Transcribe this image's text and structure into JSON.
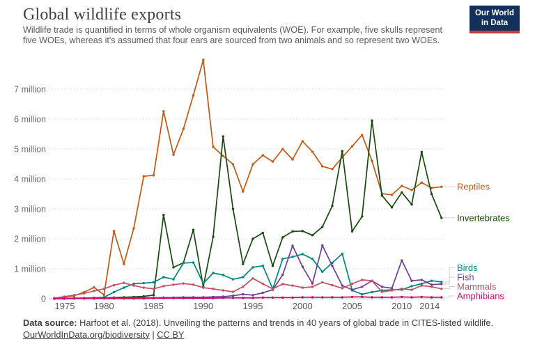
{
  "header": {
    "title": "Global wildlife exports",
    "subtitle": "Wildlife trade is quantified in terms of whole organism equivalents (WOE). For example, five skulls represent five WOEs, whereas it's assumed that four ears are sourced from two animals and so represent two WOEs.",
    "logo": {
      "line1": "Our World",
      "line2": "in Data",
      "bg_color": "#12305a",
      "accent_color": "#cc3b33"
    }
  },
  "footer": {
    "source_label": "Data source:",
    "source_text": " Harfoot et al. (2018). Unveiling the patterns and trends in 40 years of global trade in CITES-listed wildlife.",
    "link1": "OurWorldInData.org/biodiversity",
    "separator": " | ",
    "link2": "CC BY"
  },
  "chart_data": {
    "type": "line",
    "title": "Global wildlife exports",
    "xlabel": "",
    "ylabel": "whole organism equivalents (WOE)",
    "grid": "horizontal-dotted",
    "legend_position": "right",
    "ylim_million": [
      0,
      8
    ],
    "x": [
      1975,
      1976,
      1977,
      1978,
      1979,
      1980,
      1981,
      1982,
      1983,
      1984,
      1985,
      1986,
      1987,
      1988,
      1989,
      1990,
      1991,
      1992,
      1993,
      1994,
      1995,
      1996,
      1997,
      1998,
      1999,
      2000,
      2001,
      2002,
      2003,
      2004,
      2005,
      2006,
      2007,
      2008,
      2009,
      2010,
      2011,
      2012,
      2013,
      2014
    ],
    "x_ticks": [
      "1975",
      "1980",
      "1985",
      "1990",
      "1995",
      "2000",
      "2005",
      "2010",
      "2014"
    ],
    "y_ticks": [
      {
        "v": 0,
        "label": "0"
      },
      {
        "v": 1,
        "label": "1 million"
      },
      {
        "v": 2,
        "label": "2 million"
      },
      {
        "v": 3,
        "label": "3 million"
      },
      {
        "v": 4,
        "label": "4 million"
      },
      {
        "v": 5,
        "label": "5 million"
      },
      {
        "v": 6,
        "label": "6 million"
      },
      {
        "v": 7,
        "label": "7 million"
      }
    ],
    "values_unit": "million WOE",
    "series": [
      {
        "name": "Reptiles",
        "color": "#be5915",
        "values_million": [
          0.02,
          0.05,
          0.1,
          0.22,
          0.38,
          0.13,
          2.26,
          1.16,
          2.35,
          4.09,
          4.12,
          6.26,
          4.81,
          5.67,
          6.79,
          7.98,
          5.07,
          4.77,
          4.49,
          3.58,
          4.49,
          4.79,
          4.58,
          5.0,
          4.65,
          5.26,
          4.91,
          4.42,
          4.33,
          4.72,
          5.09,
          5.47,
          4.6,
          3.51,
          3.47,
          3.77,
          3.63,
          3.88,
          3.7,
          3.74
        ]
      },
      {
        "name": "Invertebrates",
        "color": "#18470f",
        "values_million": [
          0.01,
          0.01,
          0.02,
          0.02,
          0.03,
          0.03,
          0.04,
          0.05,
          0.06,
          0.08,
          0.12,
          2.8,
          1.05,
          1.2,
          2.3,
          0.4,
          2.07,
          5.42,
          3.0,
          1.16,
          2.0,
          2.2,
          1.1,
          2.05,
          2.25,
          2.26,
          2.12,
          2.4,
          3.1,
          4.93,
          2.25,
          2.75,
          5.95,
          3.45,
          3.05,
          3.55,
          3.15,
          4.9,
          3.5,
          2.7
        ]
      },
      {
        "name": "Birds",
        "color": "#00847e",
        "values_million": [
          0.0,
          0.01,
          0.01,
          0.02,
          0.03,
          0.05,
          0.22,
          0.37,
          0.5,
          0.52,
          0.55,
          0.72,
          0.65,
          1.19,
          1.21,
          0.51,
          0.86,
          0.79,
          0.65,
          0.72,
          1.05,
          1.1,
          0.33,
          1.33,
          1.4,
          1.49,
          1.33,
          0.9,
          1.2,
          1.5,
          0.28,
          0.15,
          0.22,
          0.28,
          0.3,
          0.3,
          0.42,
          0.5,
          0.6,
          0.56
        ]
      },
      {
        "name": "Fish",
        "color": "#6d3e91",
        "values_million": [
          0.0,
          0.0,
          0.01,
          0.01,
          0.01,
          0.02,
          0.02,
          0.02,
          0.03,
          0.03,
          0.03,
          0.04,
          0.04,
          0.05,
          0.05,
          0.05,
          0.06,
          0.07,
          0.1,
          0.15,
          0.12,
          0.2,
          0.3,
          0.8,
          1.77,
          1.07,
          0.51,
          1.78,
          1.1,
          0.44,
          0.3,
          0.4,
          0.6,
          0.4,
          0.35,
          1.28,
          0.6,
          0.63,
          0.47,
          0.49
        ]
      },
      {
        "name": "Mammals",
        "color": "#c15065",
        "values_million": [
          0.02,
          0.07,
          0.12,
          0.18,
          0.26,
          0.33,
          0.45,
          0.53,
          0.44,
          0.37,
          0.33,
          0.42,
          0.47,
          0.51,
          0.47,
          0.37,
          0.33,
          0.28,
          0.23,
          0.4,
          0.68,
          0.5,
          0.33,
          0.49,
          0.44,
          0.37,
          0.4,
          0.55,
          0.45,
          0.35,
          0.5,
          0.63,
          0.6,
          0.23,
          0.28,
          0.33,
          0.3,
          0.44,
          0.4,
          0.33
        ]
      },
      {
        "name": "Amphibians",
        "color": "#cf0a66",
        "values_million": [
          0.005,
          0.005,
          0.005,
          0.01,
          0.01,
          0.01,
          0.01,
          0.01,
          0.01,
          0.01,
          0.02,
          0.02,
          0.02,
          0.02,
          0.02,
          0.02,
          0.02,
          0.03,
          0.03,
          0.03,
          0.03,
          0.04,
          0.04,
          0.04,
          0.04,
          0.05,
          0.05,
          0.05,
          0.05,
          0.05,
          0.06,
          0.06,
          0.05,
          0.05,
          0.05,
          0.06,
          0.05,
          0.06,
          0.05,
          0.05
        ]
      }
    ]
  }
}
